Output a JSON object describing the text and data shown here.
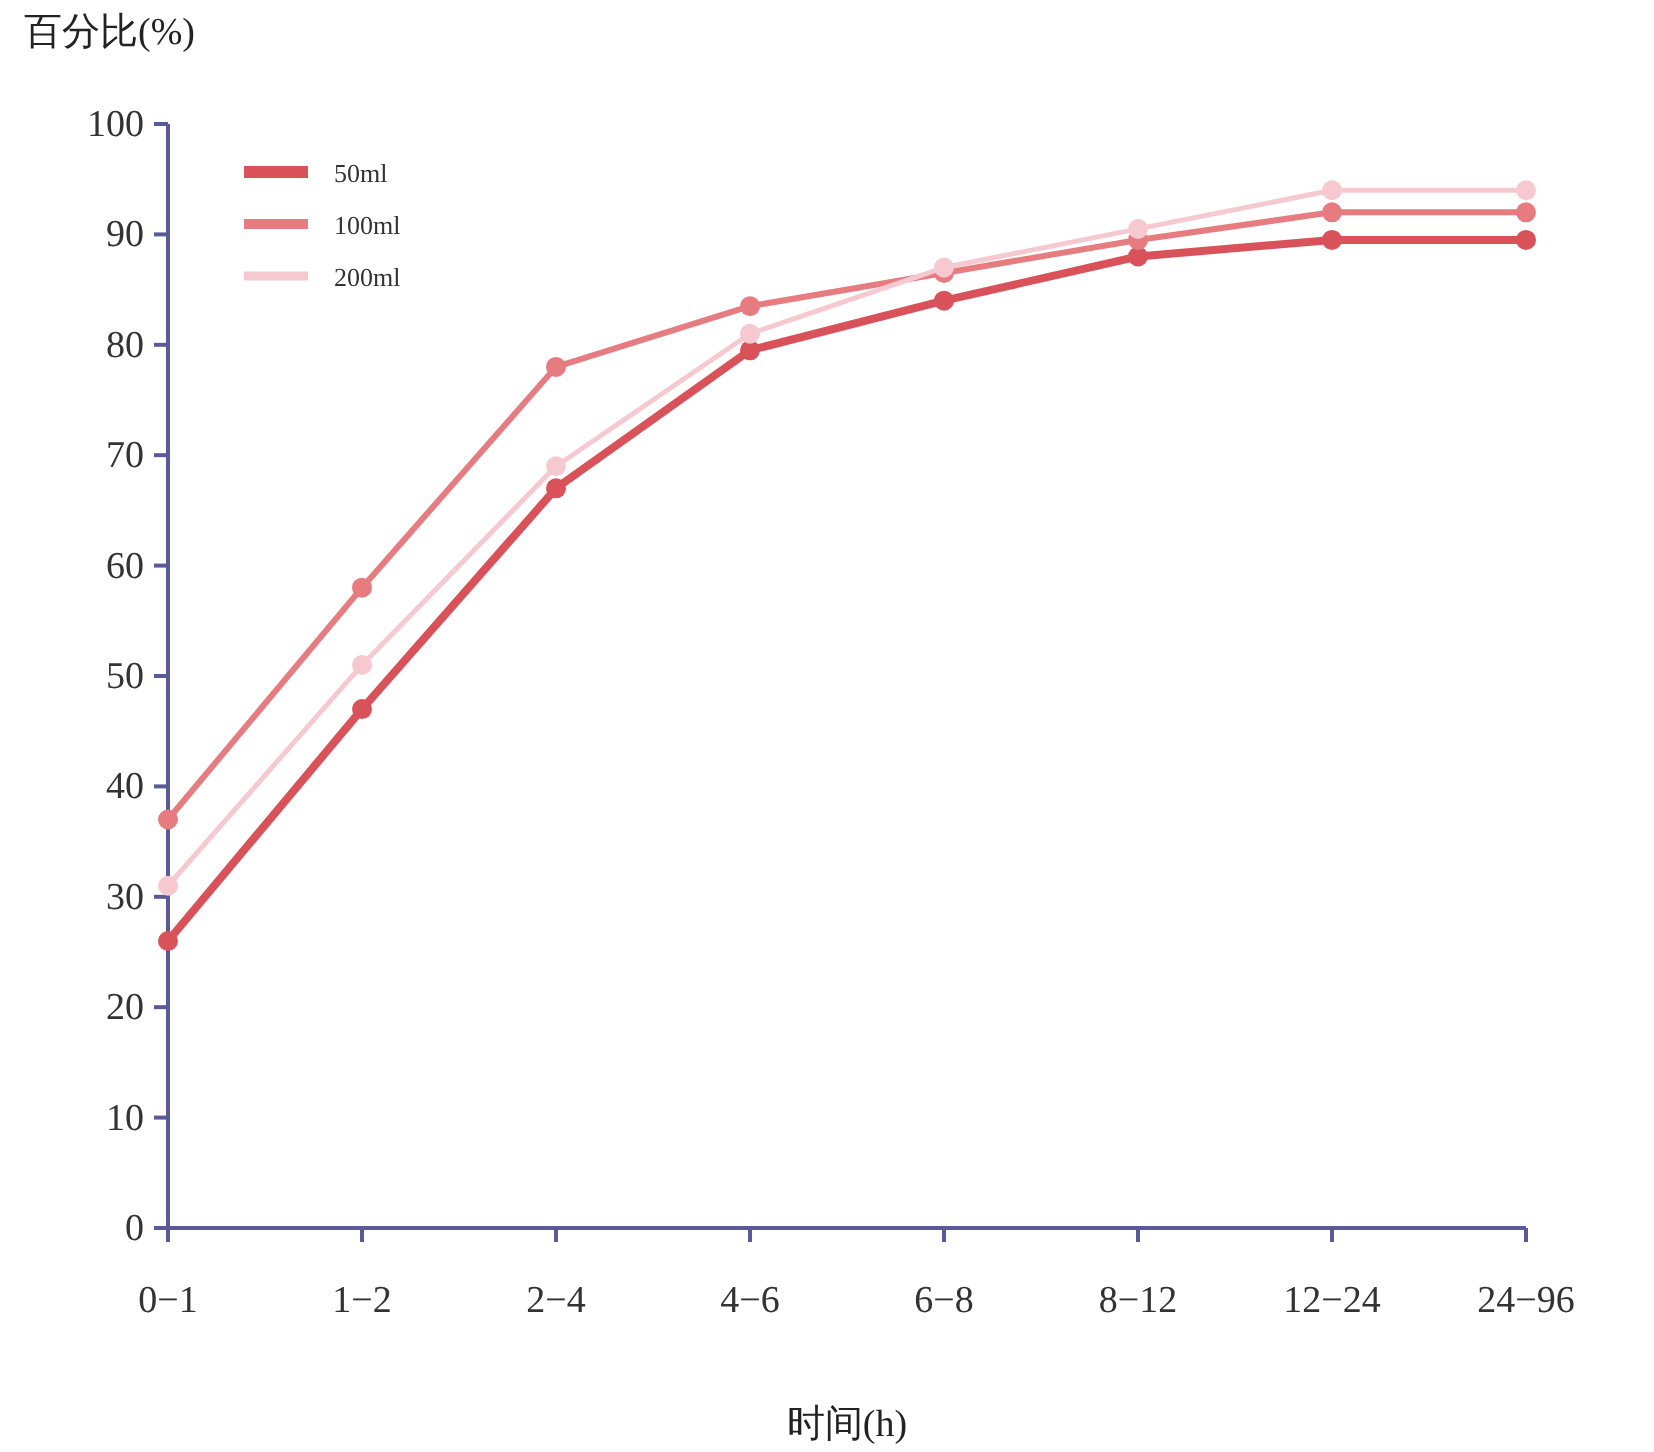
{
  "chart_data": {
    "type": "line",
    "ylabel": "百分比(%)",
    "xlabel": "时间(h)",
    "categories": [
      "0−1",
      "1−2",
      "2−4",
      "4−6",
      "6−8",
      "8−12",
      "12−24",
      "24−96"
    ],
    "series": [
      {
        "name": "50ml",
        "color": "#d9525a",
        "values": [
          26,
          47,
          67,
          79.5,
          84,
          88,
          89.5,
          89.5
        ]
      },
      {
        "name": "100ml",
        "color": "#e67c80",
        "values": [
          37,
          58,
          78,
          83.5,
          86.5,
          89.5,
          92,
          92
        ]
      },
      {
        "name": "200ml",
        "color": "#f6c9d1",
        "values": [
          31,
          51,
          69,
          81,
          87,
          90.5,
          94,
          94
        ]
      }
    ],
    "ylim": [
      0,
      100
    ],
    "yticks": [
      0,
      10,
      20,
      30,
      40,
      50,
      60,
      70,
      80,
      90,
      100
    ],
    "grid": false,
    "legend": "top left",
    "marker": "circle",
    "line_style": "solid"
  }
}
